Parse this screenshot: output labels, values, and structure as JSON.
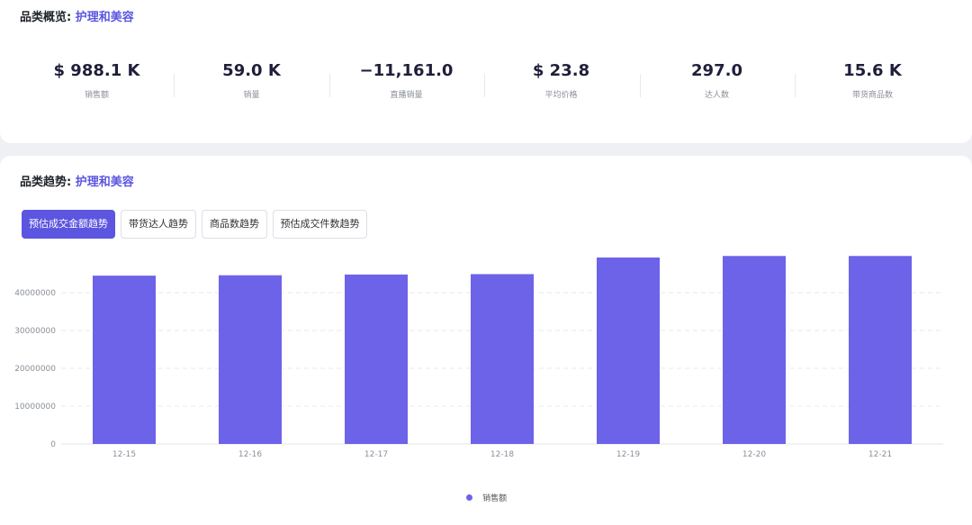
{
  "overview": {
    "title_prefix": "品类概览:",
    "category": "护理和美容",
    "metrics": [
      {
        "value": "$ 988.1 K",
        "label": "销售额"
      },
      {
        "value": "59.0 K",
        "label": "销量"
      },
      {
        "value": "−11,161.0",
        "label": "直播销量"
      },
      {
        "value": "$ 23.8",
        "label": "平均价格"
      },
      {
        "value": "297.0",
        "label": "达人数"
      },
      {
        "value": "15.6 K",
        "label": "带货商品数"
      }
    ]
  },
  "trend": {
    "title_prefix": "品类趋势:",
    "category": "护理和美容",
    "tabs": [
      {
        "label": "预估成交金额趋势",
        "active": true
      },
      {
        "label": "带货达人趋势",
        "active": false
      },
      {
        "label": "商品数趋势",
        "active": false
      },
      {
        "label": "预估成交件数趋势",
        "active": false
      }
    ]
  },
  "colors": {
    "accent": "#5b55e0",
    "bar": "#6c63e8"
  },
  "chart_data": {
    "type": "bar",
    "categories": [
      "12-15",
      "12-16",
      "12-17",
      "12-18",
      "12-19",
      "12-20",
      "12-21"
    ],
    "series": [
      {
        "name": "销售额",
        "values": [
          44500000,
          44600000,
          44800000,
          44900000,
          49300000,
          49700000,
          49700000
        ]
      }
    ],
    "yticks": [
      "0",
      "10000000",
      "20000000",
      "30000000",
      "40000000"
    ],
    "ylim": [
      0,
      50000000
    ],
    "grid": true,
    "legend": "bottom-center"
  }
}
